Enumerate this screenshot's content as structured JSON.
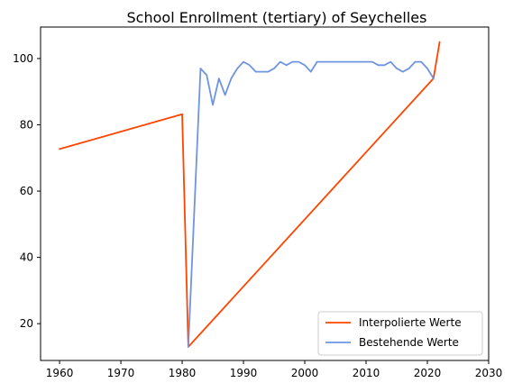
{
  "chart_data": {
    "type": "line",
    "title": "School Enrollment (tertiary) of Seychelles",
    "xlabel": "",
    "ylabel": "",
    "xlim": [
      1956.9,
      2030
    ],
    "ylim": [
      8.9,
      109.5
    ],
    "xticks": [
      1960,
      1970,
      1980,
      1990,
      2000,
      2010,
      2020,
      2030
    ],
    "yticks": [
      20,
      40,
      60,
      80,
      100
    ],
    "grid": false,
    "legend_position": "lower-right",
    "series": [
      {
        "name": "Interpolierte Werte",
        "color": "#ff4500",
        "x": [
          1960,
          1980,
          1981,
          2021,
          2022
        ],
        "y": [
          72.7,
          83.2,
          13,
          94,
          105
        ]
      },
      {
        "name": "Bestehende Werte",
        "color": "#6f94e0",
        "x": [
          1981,
          1982,
          1983,
          1984,
          1985,
          1986,
          1987,
          1988,
          1989,
          1990,
          1991,
          1992,
          1993,
          1994,
          1995,
          1996,
          1997,
          1998,
          1999,
          2000,
          2001,
          2002,
          2003,
          2004,
          2005,
          2006,
          2007,
          2008,
          2009,
          2010,
          2011,
          2012,
          2013,
          2014,
          2015,
          2016,
          2017,
          2018,
          2019,
          2020,
          2021
        ],
        "y": [
          13,
          55,
          97,
          95,
          86,
          94,
          89,
          94,
          97,
          99,
          98,
          96,
          96,
          96,
          97,
          99,
          98,
          99,
          99,
          98,
          96,
          99,
          99,
          99,
          99,
          99,
          99,
          99,
          99,
          99,
          99,
          98,
          98,
          99,
          97,
          96,
          97,
          99,
          99,
          97,
          94
        ]
      }
    ]
  }
}
